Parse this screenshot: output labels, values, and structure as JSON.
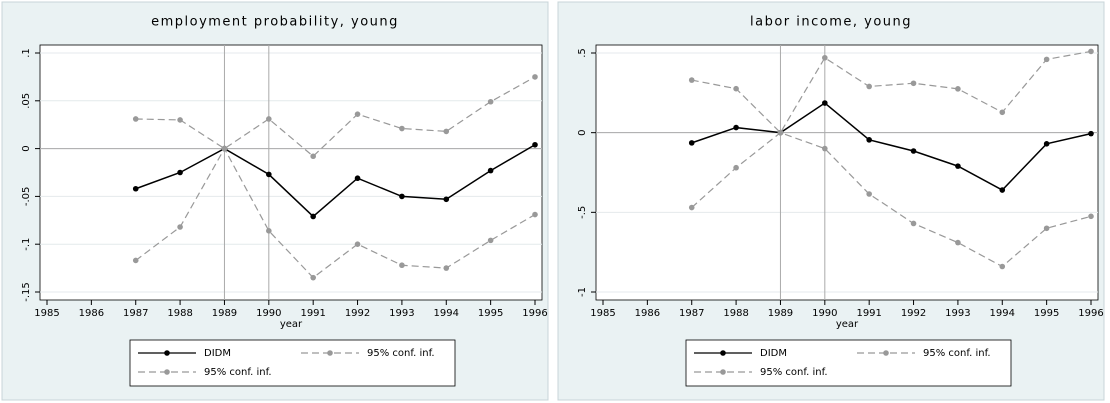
{
  "chart_data": [
    {
      "type": "line",
      "title": "employment probability, young",
      "xlabel": "year",
      "x": [
        1987,
        1988,
        1989,
        1990,
        1991,
        1992,
        1993,
        1994,
        1995,
        1996
      ],
      "series": [
        {
          "name": "DIDM",
          "color": "#000000",
          "style": "solid",
          "values": [
            -0.042,
            -0.025,
            0,
            -0.027,
            -0.071,
            -0.031,
            -0.05,
            -0.053,
            -0.023,
            0.004
          ]
        },
        {
          "name": "95% conf. inf.",
          "color": "#999999",
          "style": "dashed",
          "values": [
            0.031,
            0.03,
            0,
            0.031,
            -0.008,
            0.036,
            0.021,
            0.018,
            0.049,
            0.075
          ]
        },
        {
          "name": "95% conf. inf.",
          "color": "#999999",
          "style": "dashed",
          "values": [
            -0.117,
            -0.082,
            0,
            -0.086,
            -0.135,
            -0.1,
            -0.122,
            -0.125,
            -0.096,
            -0.069
          ]
        }
      ],
      "xlim": [
        1985,
        1996
      ],
      "ylim": [
        -0.15,
        0.1
      ],
      "xticks": [
        1985,
        1986,
        1987,
        1988,
        1989,
        1990,
        1991,
        1992,
        1993,
        1994,
        1995,
        1996
      ],
      "yticks": [
        {
          "value": -0.15,
          "label": "-.15"
        },
        {
          "value": -0.1,
          "label": "-.1"
        },
        {
          "value": -0.05,
          "label": "-.05"
        },
        0,
        {
          "value": 0.05,
          "label": ".05"
        },
        {
          "value": 0.1,
          "label": ".1"
        }
      ],
      "xlines": [
        1989,
        1990
      ],
      "ylines": [
        0
      ],
      "grid": true
    },
    {
      "type": "line",
      "title": "labor income, young",
      "xlabel": "year",
      "x": [
        1987,
        1988,
        1989,
        1990,
        1991,
        1992,
        1993,
        1994,
        1995,
        1996
      ],
      "series": [
        {
          "name": "DIDM",
          "color": "#000000",
          "style": "solid",
          "values": [
            -0.064,
            0.032,
            0,
            0.186,
            -0.045,
            -0.115,
            -0.21,
            -0.36,
            -0.07,
            -0.006
          ]
        },
        {
          "name": "95% conf. inf.",
          "color": "#999999",
          "style": "dashed",
          "values": [
            0.33,
            0.276,
            0,
            0.47,
            0.29,
            0.31,
            0.275,
            0.128,
            0.46,
            0.51
          ]
        },
        {
          "name": "95% conf. inf.",
          "color": "#999999",
          "style": "dashed",
          "values": [
            -0.47,
            -0.22,
            0,
            -0.1,
            -0.385,
            -0.57,
            -0.69,
            -0.84,
            -0.6,
            -0.525
          ]
        }
      ],
      "xlim": [
        1985,
        1996
      ],
      "ylim": [
        -1,
        0.5
      ],
      "xticks": [
        1985,
        1986,
        1987,
        1988,
        1989,
        1990,
        1991,
        1992,
        1993,
        1994,
        1995,
        1996
      ],
      "yticks": [
        -1,
        {
          "value": -0.5,
          "label": "-.5"
        },
        0,
        {
          "value": 0.5,
          "label": ".5"
        }
      ],
      "xlines": [
        1989,
        1990
      ],
      "ylines": [
        0
      ],
      "grid": true
    }
  ]
}
